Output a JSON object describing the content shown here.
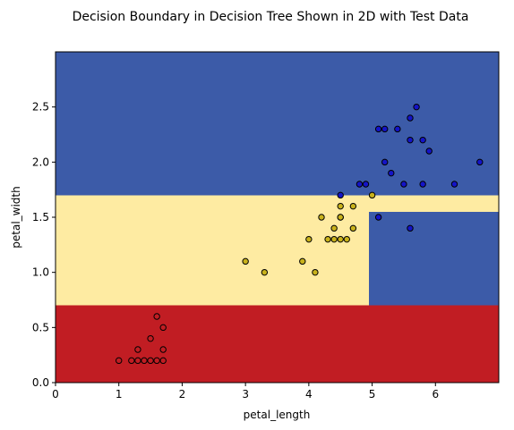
{
  "chart_data": {
    "type": "scatter",
    "title": "Decision Boundary in Decision Tree Shown in 2D with Test Data",
    "xlabel": "petal_length",
    "ylabel": "petal_width",
    "xlim": [
      0,
      7.0
    ],
    "ylim": [
      0,
      3.0
    ],
    "xticks": [
      0,
      1,
      2,
      3,
      4,
      5,
      6
    ],
    "yticks": [
      0.0,
      0.5,
      1.0,
      1.5,
      2.0,
      2.5
    ],
    "xtick_labels": [
      "0",
      "1",
      "2",
      "3",
      "4",
      "5",
      "6"
    ],
    "ytick_labels": [
      "0.0",
      "0.5",
      "1.0",
      "1.5",
      "2.0",
      "2.5"
    ],
    "grid": false,
    "decision_regions": [
      {
        "class": 0,
        "color": "#c11d23",
        "x": [
          0,
          7.0
        ],
        "y": [
          0,
          0.7
        ]
      },
      {
        "class": 1,
        "color": "#feeba2",
        "x": [
          0,
          4.95
        ],
        "y": [
          0.7,
          1.7
        ]
      },
      {
        "class": 2,
        "color": "#3c5ba8",
        "x": [
          4.95,
          7.0
        ],
        "y": [
          0.7,
          1.55
        ]
      },
      {
        "class": 1,
        "color": "#feeba2",
        "x": [
          4.95,
          7.0
        ],
        "y": [
          1.55,
          1.7
        ]
      },
      {
        "class": 2,
        "color": "#3c5ba8",
        "x": [
          0,
          7.0
        ],
        "y": [
          1.7,
          3.0
        ]
      }
    ],
    "series": [
      {
        "class": 0,
        "color": "#c11d23",
        "points": [
          [
            1.0,
            0.2
          ],
          [
            1.2,
            0.2
          ],
          [
            1.3,
            0.2
          ],
          [
            1.4,
            0.2
          ],
          [
            1.5,
            0.2
          ],
          [
            1.6,
            0.2
          ],
          [
            1.7,
            0.2
          ],
          [
            1.3,
            0.3
          ],
          [
            1.7,
            0.3
          ],
          [
            1.5,
            0.4
          ],
          [
            1.7,
            0.5
          ],
          [
            1.6,
            0.6
          ]
        ]
      },
      {
        "class": 1,
        "color": "#c9b21b",
        "points": [
          [
            3.0,
            1.1
          ],
          [
            3.3,
            1.0
          ],
          [
            3.9,
            1.1
          ],
          [
            4.1,
            1.0
          ],
          [
            4.0,
            1.3
          ],
          [
            4.3,
            1.3
          ],
          [
            4.4,
            1.3
          ],
          [
            4.5,
            1.3
          ],
          [
            4.6,
            1.3
          ],
          [
            4.4,
            1.4
          ],
          [
            4.7,
            1.4
          ],
          [
            4.2,
            1.5
          ],
          [
            4.5,
            1.5
          ],
          [
            4.5,
            1.5
          ],
          [
            4.5,
            1.6
          ],
          [
            4.7,
            1.6
          ],
          [
            5.0,
            1.7
          ]
        ]
      },
      {
        "class": 2,
        "color": "#1414c8",
        "points": [
          [
            5.1,
            1.5
          ],
          [
            5.6,
            1.4
          ],
          [
            4.5,
            1.7
          ],
          [
            4.8,
            1.8
          ],
          [
            4.9,
            1.8
          ],
          [
            5.5,
            1.8
          ],
          [
            5.8,
            1.8
          ],
          [
            6.3,
            1.8
          ],
          [
            5.3,
            1.9
          ],
          [
            5.2,
            2.0
          ],
          [
            6.7,
            2.0
          ],
          [
            5.9,
            2.1
          ],
          [
            5.6,
            2.2
          ],
          [
            5.8,
            2.2
          ],
          [
            5.1,
            2.3
          ],
          [
            5.2,
            2.3
          ],
          [
            5.4,
            2.3
          ],
          [
            5.6,
            2.4
          ],
          [
            5.7,
            2.5
          ]
        ]
      }
    ]
  }
}
